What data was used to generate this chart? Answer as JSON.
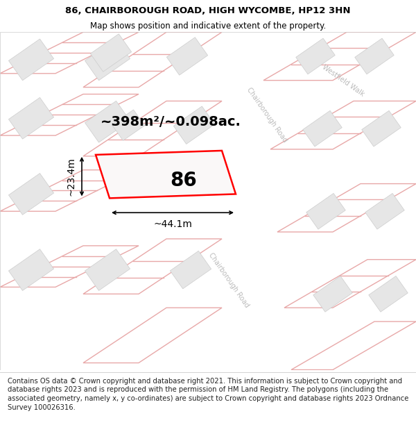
{
  "title_line1": "86, CHAIRBOROUGH ROAD, HIGH WYCOMBE, HP12 3HN",
  "title_line2": "Map shows position and indicative extent of the property.",
  "footer_text": "Contains OS data © Crown copyright and database right 2021. This information is subject to Crown copyright and database rights 2023 and is reproduced with the permission of HM Land Registry. The polygons (including the associated geometry, namely x, y co-ordinates) are subject to Crown copyright and database rights 2023 Ordnance Survey 100026316.",
  "area_text": "~398m²/~0.098ac.",
  "width_text": "~44.1m",
  "height_text": "~23.4m",
  "property_number": "86",
  "map_bg": "#faf8f8",
  "plot_outline_color": "#e8b0b0",
  "building_fill": "#e8e8e8",
  "building_edge": "#cccccc",
  "highlight_fill": "#ffffff",
  "highlight_outline": "#ff0000",
  "road_label_color": "#bbbbbb",
  "title_fontsize": 9.5,
  "subtitle_fontsize": 8.5,
  "footer_fontsize": 7.2,
  "area_fontsize": 14,
  "label_fontsize": 10,
  "number_fontsize": 20
}
